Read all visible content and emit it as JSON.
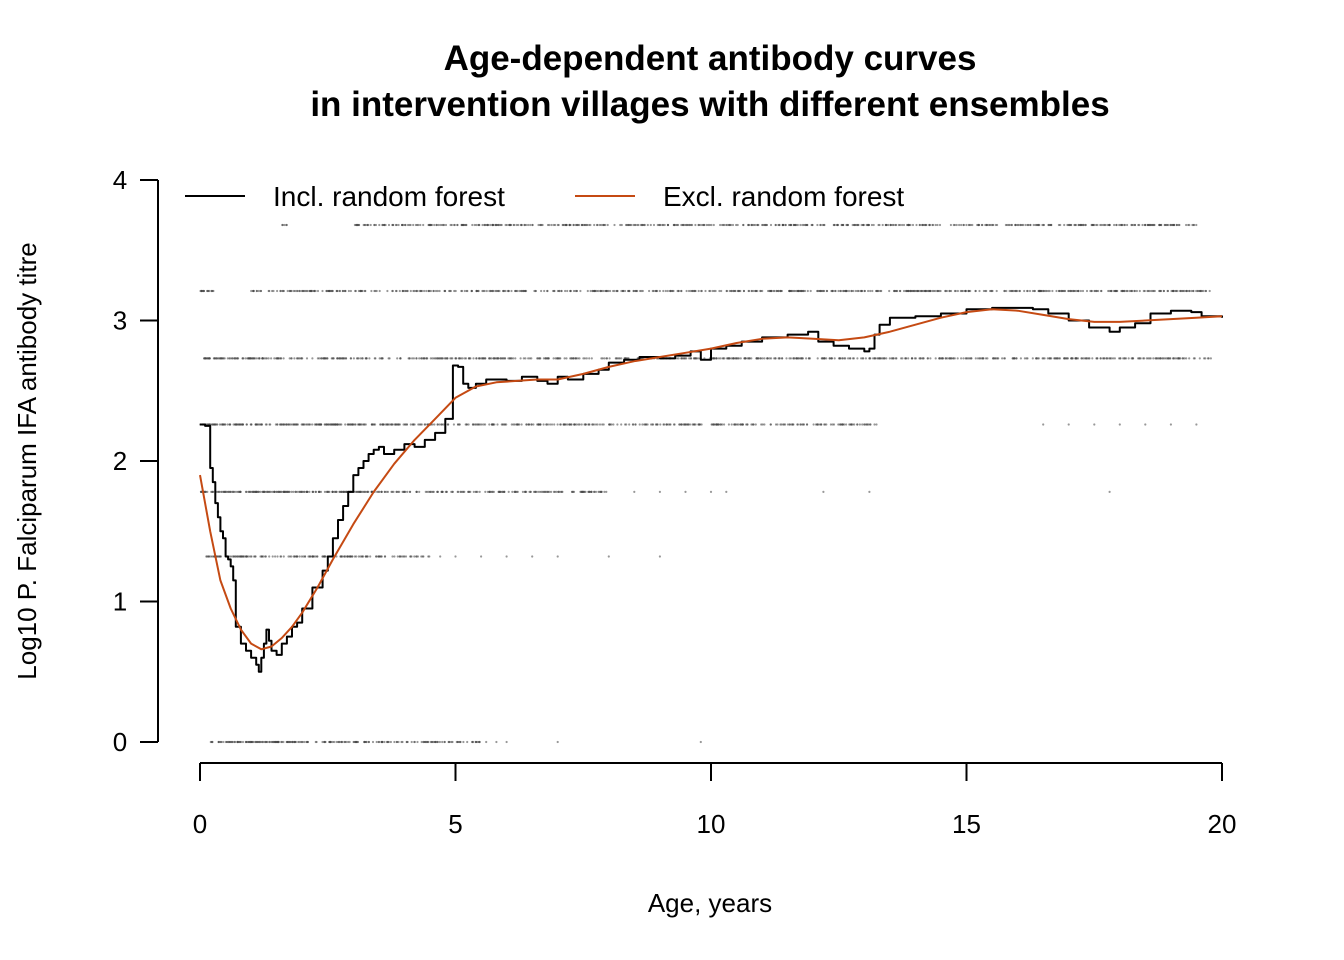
{
  "chart_data": {
    "type": "line",
    "title_lines": [
      "Age-dependent antibody curves",
      "in intervention villages with different ensembles"
    ],
    "xlabel": "Age, years",
    "ylabel": "Log10 P. Falciparum IFA antibody titre",
    "xlim": [
      0,
      20
    ],
    "ylim": [
      0,
      4
    ],
    "x_ticks": [
      0,
      5,
      10,
      15,
      20
    ],
    "y_ticks": [
      0,
      1,
      2,
      3,
      4
    ],
    "grid": false,
    "legend": {
      "placement": "top",
      "entries": [
        "Incl. random forest",
        "Excl. random forest"
      ]
    },
    "series": [
      {
        "name": "Incl. random forest",
        "color": "#000000",
        "x": [
          0.0,
          0.1,
          0.2,
          0.25,
          0.3,
          0.35,
          0.4,
          0.45,
          0.5,
          0.55,
          0.6,
          0.65,
          0.7,
          0.8,
          0.9,
          1.0,
          1.1,
          1.15,
          1.2,
          1.25,
          1.3,
          1.35,
          1.4,
          1.5,
          1.6,
          1.7,
          1.8,
          1.9,
          2.0,
          2.2,
          2.4,
          2.5,
          2.6,
          2.7,
          2.8,
          2.9,
          3.0,
          3.1,
          3.2,
          3.3,
          3.4,
          3.5,
          3.6,
          3.8,
          4.0,
          4.2,
          4.4,
          4.6,
          4.8,
          4.95,
          5.05,
          5.15,
          5.25,
          5.4,
          5.6,
          5.8,
          6.0,
          6.3,
          6.6,
          6.8,
          7.0,
          7.2,
          7.5,
          7.8,
          8.0,
          8.3,
          8.6,
          9.0,
          9.3,
          9.6,
          9.8,
          10.0,
          10.3,
          10.6,
          11.0,
          11.5,
          11.9,
          12.1,
          12.4,
          12.7,
          13.0,
          13.1,
          13.2,
          13.3,
          13.5,
          14.0,
          14.5,
          15.0,
          15.5,
          16.0,
          16.3,
          16.6,
          17.0,
          17.4,
          17.8,
          18.0,
          18.3,
          18.6,
          19.0,
          19.4,
          19.6,
          20.0
        ],
        "values": [
          2.26,
          2.25,
          1.95,
          1.85,
          1.7,
          1.6,
          1.5,
          1.45,
          1.32,
          1.3,
          1.25,
          1.15,
          0.82,
          0.7,
          0.65,
          0.6,
          0.55,
          0.5,
          0.6,
          0.7,
          0.8,
          0.72,
          0.65,
          0.62,
          0.7,
          0.75,
          0.82,
          0.85,
          0.95,
          1.1,
          1.22,
          1.32,
          1.45,
          1.58,
          1.68,
          1.78,
          1.9,
          1.95,
          2.0,
          2.05,
          2.08,
          2.1,
          2.05,
          2.08,
          2.12,
          2.1,
          2.15,
          2.2,
          2.3,
          2.68,
          2.67,
          2.55,
          2.52,
          2.55,
          2.58,
          2.58,
          2.57,
          2.6,
          2.57,
          2.55,
          2.6,
          2.58,
          2.62,
          2.65,
          2.7,
          2.72,
          2.74,
          2.73,
          2.75,
          2.78,
          2.72,
          2.8,
          2.82,
          2.85,
          2.88,
          2.9,
          2.92,
          2.85,
          2.82,
          2.8,
          2.78,
          2.8,
          2.9,
          2.97,
          3.02,
          3.03,
          3.05,
          3.08,
          3.09,
          3.09,
          3.08,
          3.05,
          3.0,
          2.95,
          2.92,
          2.95,
          2.98,
          3.05,
          3.07,
          3.06,
          3.03,
          3.02
        ]
      },
      {
        "name": "Excl. random forest",
        "color": "#c54a13",
        "x": [
          0.0,
          0.2,
          0.4,
          0.6,
          0.8,
          1.0,
          1.2,
          1.4,
          1.6,
          1.8,
          2.0,
          2.3,
          2.6,
          3.0,
          3.4,
          3.8,
          4.2,
          4.6,
          5.0,
          5.4,
          5.8,
          6.2,
          6.6,
          7.0,
          7.5,
          8.0,
          8.5,
          9.0,
          9.5,
          10.0,
          10.5,
          11.0,
          11.5,
          12.0,
          12.5,
          13.0,
          13.5,
          14.0,
          14.5,
          15.0,
          15.5,
          16.0,
          16.5,
          17.0,
          17.5,
          18.0,
          18.5,
          19.0,
          19.5,
          20.0
        ],
        "values": [
          1.9,
          1.5,
          1.15,
          0.95,
          0.8,
          0.7,
          0.66,
          0.68,
          0.74,
          0.82,
          0.92,
          1.1,
          1.3,
          1.55,
          1.78,
          1.98,
          2.15,
          2.3,
          2.45,
          2.53,
          2.56,
          2.57,
          2.58,
          2.58,
          2.62,
          2.67,
          2.71,
          2.74,
          2.77,
          2.8,
          2.84,
          2.87,
          2.88,
          2.87,
          2.86,
          2.88,
          2.92,
          2.97,
          3.02,
          3.06,
          3.08,
          3.07,
          3.04,
          3.01,
          2.99,
          2.99,
          3.0,
          3.01,
          3.02,
          3.03
        ]
      }
    ],
    "scatter_points": {
      "color": "#444444",
      "rows": [
        {
          "y": 0.0,
          "x_ranges": [
            [
              0.2,
              2.1
            ],
            [
              2.1,
              3.5
            ],
            [
              3.5,
              4.0
            ],
            [
              4.0,
              5.5
            ]
          ],
          "sparse_x": [
            5.6,
            5.8,
            6.0,
            7.0,
            9.8
          ]
        },
        {
          "y": 1.32,
          "x_ranges": [
            [
              0.1,
              1.0
            ],
            [
              1.0,
              2.8
            ],
            [
              2.8,
              4.5
            ]
          ],
          "sparse_x": [
            4.7,
            5.0,
            5.5,
            6.0,
            6.5,
            7.0,
            8.0,
            9.0
          ]
        },
        {
          "y": 1.78,
          "x_ranges": [
            [
              0.0,
              3.5
            ],
            [
              3.5,
              8.0
            ]
          ],
          "sparse_x": [
            8.5,
            9.0,
            9.5,
            10.0,
            10.3,
            12.2,
            13.1,
            17.8
          ]
        },
        {
          "y": 2.26,
          "x_ranges": [
            [
              0.0,
              4.0
            ],
            [
              4.0,
              10.0
            ],
            [
              10.0,
              13.3
            ]
          ],
          "sparse_x": [
            16.5,
            17.0,
            17.5,
            18.0,
            18.5,
            19.0,
            19.5
          ]
        },
        {
          "y": 2.73,
          "x_ranges": [
            [
              0.0,
              1.0
            ],
            [
              1.0,
              14.0
            ],
            [
              14.0,
              19.8
            ]
          ],
          "sparse_x": []
        },
        {
          "y": 3.21,
          "x_ranges": [
            [
              0.0,
              0.3
            ],
            [
              1.0,
              14.5
            ],
            [
              14.5,
              19.8
            ]
          ],
          "sparse_x": []
        },
        {
          "y": 3.68,
          "x_ranges": [
            [
              1.6,
              1.7
            ],
            [
              3.0,
              19.5
            ]
          ],
          "sparse_x": []
        }
      ]
    }
  }
}
